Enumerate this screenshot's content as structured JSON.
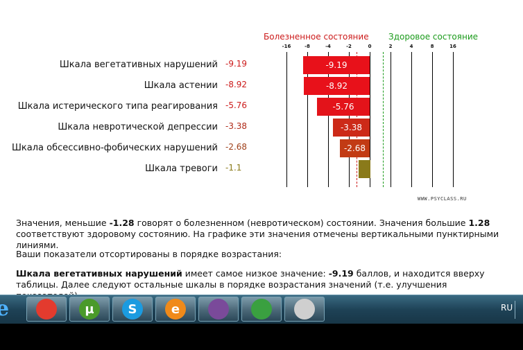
{
  "chart_data": {
    "type": "bar",
    "orientation": "horizontal",
    "header_bad": "Болезненное состояние",
    "header_good": "Здоровое состояние",
    "ticks": [
      "-16",
      "-8",
      "-4",
      "-2",
      "0",
      "2",
      "4",
      "8",
      "16"
    ],
    "categories": [
      "Шкала вегетативных нарушений",
      "Шкала астении",
      "Шкала истерического типа реагирования",
      "Шкала невротической депрессии",
      "Шкала обсессивно-фобических нарушений",
      "Шкала тревоги"
    ],
    "values": [
      -9.19,
      -8.92,
      -5.76,
      -3.38,
      -2.68,
      -1.1
    ],
    "value_labels": [
      "-9.19",
      "-8.92",
      "-5.76",
      "-3.38",
      "-2.68",
      "-1.1"
    ],
    "bar_colors": [
      "#e8111a",
      "#e8111a",
      "#e3131a",
      "#cc2a18",
      "#c23b14",
      "#8a7a1a"
    ],
    "value_text_colors": [
      "#cc1a1a",
      "#cc1a1a",
      "#cc1a1a",
      "#b02a18",
      "#a0401a",
      "#8a7a1a"
    ],
    "threshold_low": -1.28,
    "threshold_high": 1.28,
    "threshold_colors": {
      "low": "#cc1a1a",
      "high": "#1a9a1a"
    },
    "credit": "WWW.PSYCLASS.RU"
  },
  "text": {
    "p1_a": "Значения, меньшие ",
    "p1_b": "-1.28",
    "p1_c": " говорят о болезненном (невротическом) состоянии. Значения большие ",
    "p1_d": "1.28",
    "p1_e": " соответствуют здоровому состоянию. На графике эти значения отмечены вертикальными пунктирными линиями.",
    "p2": "Ваши показатели отсортированы в порядке возрастания:",
    "p3_a": "Шкала вегетативных нарушений",
    "p3_b": " имеет самое низкое значение: ",
    "p3_c": "-9.19",
    "p3_d": " баллов, и находится вверху таблицы. Далее следуют остальные шкалы в порядке возрастания значений (т.е. улучшения показателей)."
  },
  "taskbar": {
    "start_icon": "ie-icon",
    "apps": [
      {
        "name": "chrome-icon",
        "letter": "",
        "color": "#e33b2e"
      },
      {
        "name": "utorrent-icon",
        "letter": "µ",
        "color": "#4a9a2a"
      },
      {
        "name": "skype-icon",
        "letter": "S",
        "color": "#1b9be0"
      },
      {
        "name": "ie-alt-icon",
        "letter": "e",
        "color": "#f08a1a"
      },
      {
        "name": "tor-icon",
        "letter": "",
        "color": "#7a4a9a"
      },
      {
        "name": "network-icon",
        "letter": "",
        "color": "#3aa040"
      },
      {
        "name": "camera-icon",
        "letter": "",
        "color": "#cfcfcf"
      }
    ],
    "language": "RU"
  }
}
